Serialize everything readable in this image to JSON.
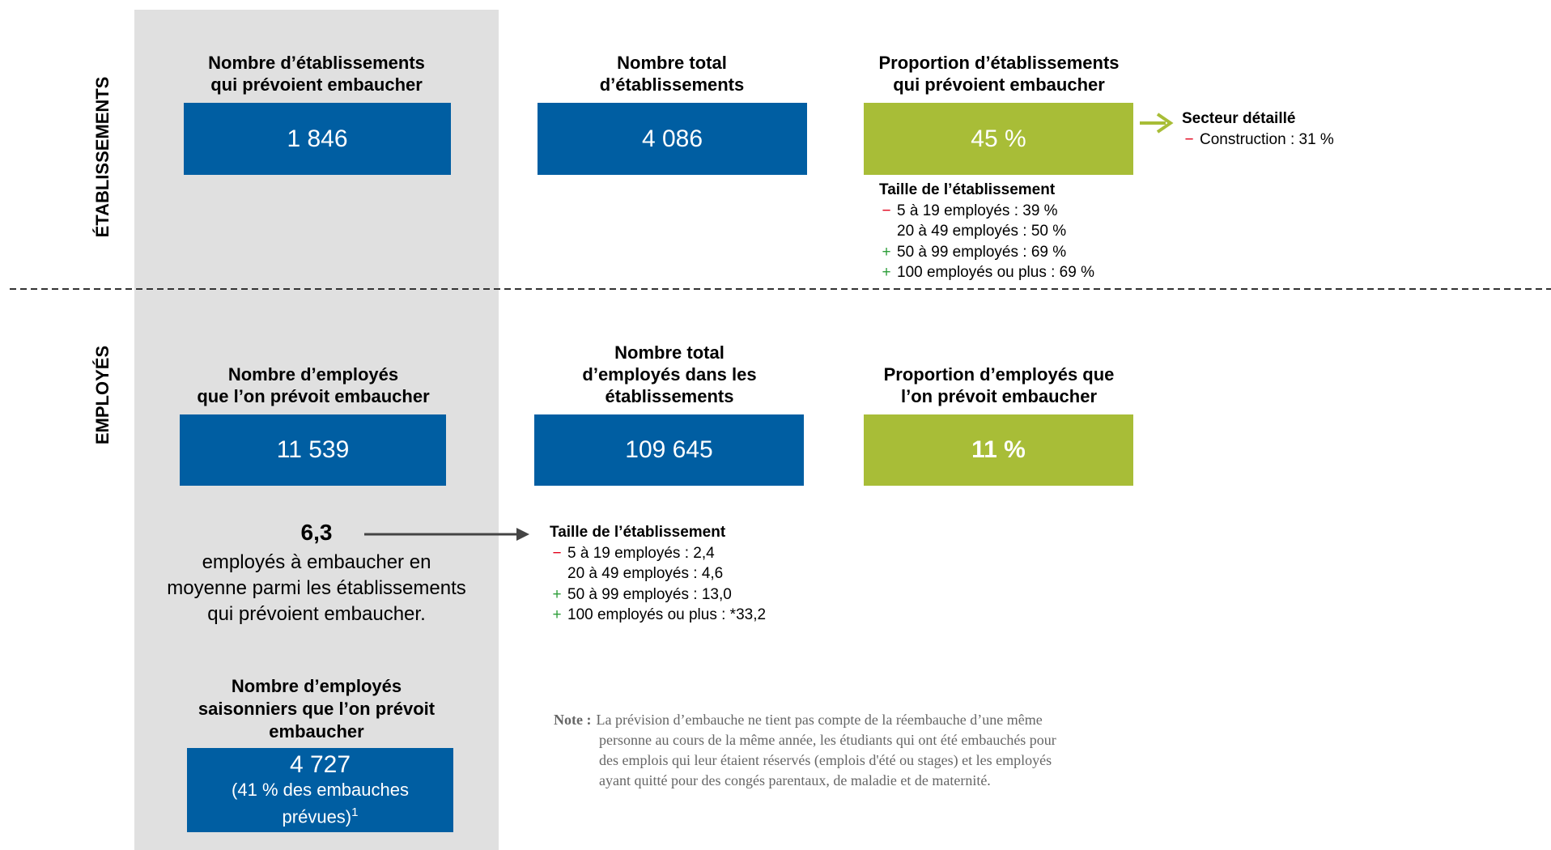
{
  "sections": [
    {
      "label": "ÉTABLISSEMENTS",
      "boxes": [
        {
          "title_lines": [
            "Nombre d’établissements",
            "qui prévoient embaucher"
          ],
          "value": "1 846",
          "color": "#005ea2"
        },
        {
          "title_lines": [
            "Nombre total",
            "d’établissements"
          ],
          "value": "4 086",
          "color": "#005ea2"
        },
        {
          "title_lines": [
            "Proportion d’établissements",
            "qui prévoient embaucher"
          ],
          "value": "45 %",
          "color": "#a8bd37"
        }
      ],
      "sector": {
        "title": "Secteur détaillé",
        "items": [
          {
            "sign": "−",
            "color": "#e2001a",
            "text": "Construction : 31 %"
          }
        ]
      },
      "size_breakdown": {
        "title": "Taille de l’établissement",
        "items": [
          {
            "sign": "−",
            "color": "#e2001a",
            "text": "5 à 19 employés : 39 %"
          },
          {
            "text": "20 à 49 employés : 50 %"
          },
          {
            "sign": "+",
            "color": "#2e9e3a",
            "text": "50 à 99 employés : 69 %"
          },
          {
            "sign": "+",
            "color": "#2e9e3a",
            "text": "100 employés ou plus : 69 %"
          }
        ]
      }
    },
    {
      "label": "EMPLOYÉS",
      "boxes": [
        {
          "title_lines": [
            "Nombre d’employés",
            "que l’on prévoit embaucher"
          ],
          "value": "11 539",
          "color": "#005ea2"
        },
        {
          "title_lines": [
            "Nombre total",
            "d’employés dans les",
            "établissements"
          ],
          "value": "109 645",
          "color": "#005ea2"
        },
        {
          "title_lines": [
            "Proportion d’employés que",
            "l’on prévoit embaucher"
          ],
          "value": "11 %",
          "color": "#a8bd37"
        }
      ],
      "average": {
        "value": "6,3",
        "caption_lines": [
          "employés à embaucher en",
          "moyenne parmi les établissements",
          "qui prévoient embaucher."
        ]
      },
      "size_breakdown": {
        "title": "Taille de l’établissement",
        "items": [
          {
            "sign": "−",
            "color": "#e2001a",
            "text": "5 à 19 employés : 2,4"
          },
          {
            "text": "20 à 49 employés : 4,6"
          },
          {
            "sign": "+",
            "color": "#2e9e3a",
            "text": "50 à 99 employés : 13,0"
          },
          {
            "sign": "+",
            "color": "#2e9e3a",
            "text": "100 employés ou plus : *33,2"
          }
        ]
      },
      "seasonal": {
        "title_lines": [
          "Nombre d’employés",
          "saisonniers que l’on prévoit",
          "embaucher"
        ],
        "value": "4 727",
        "detail_lines": [
          "(41 % des embauches",
          "prévues)"
        ],
        "footnote_mark": "1",
        "color": "#005ea2"
      }
    }
  ],
  "note": {
    "label": "Note :",
    "lines": [
      "La prévision d’embauche ne tient pas compte de la réembauche d’une même",
      "personne au cours de la même année, les étudiants qui ont été embauchés pour",
      "des emplois qui leur étaient réservés (emplois d'été ou stages) et les employés",
      "ayant quitté pour des congés parentaux, de maladie et de maternité."
    ]
  }
}
